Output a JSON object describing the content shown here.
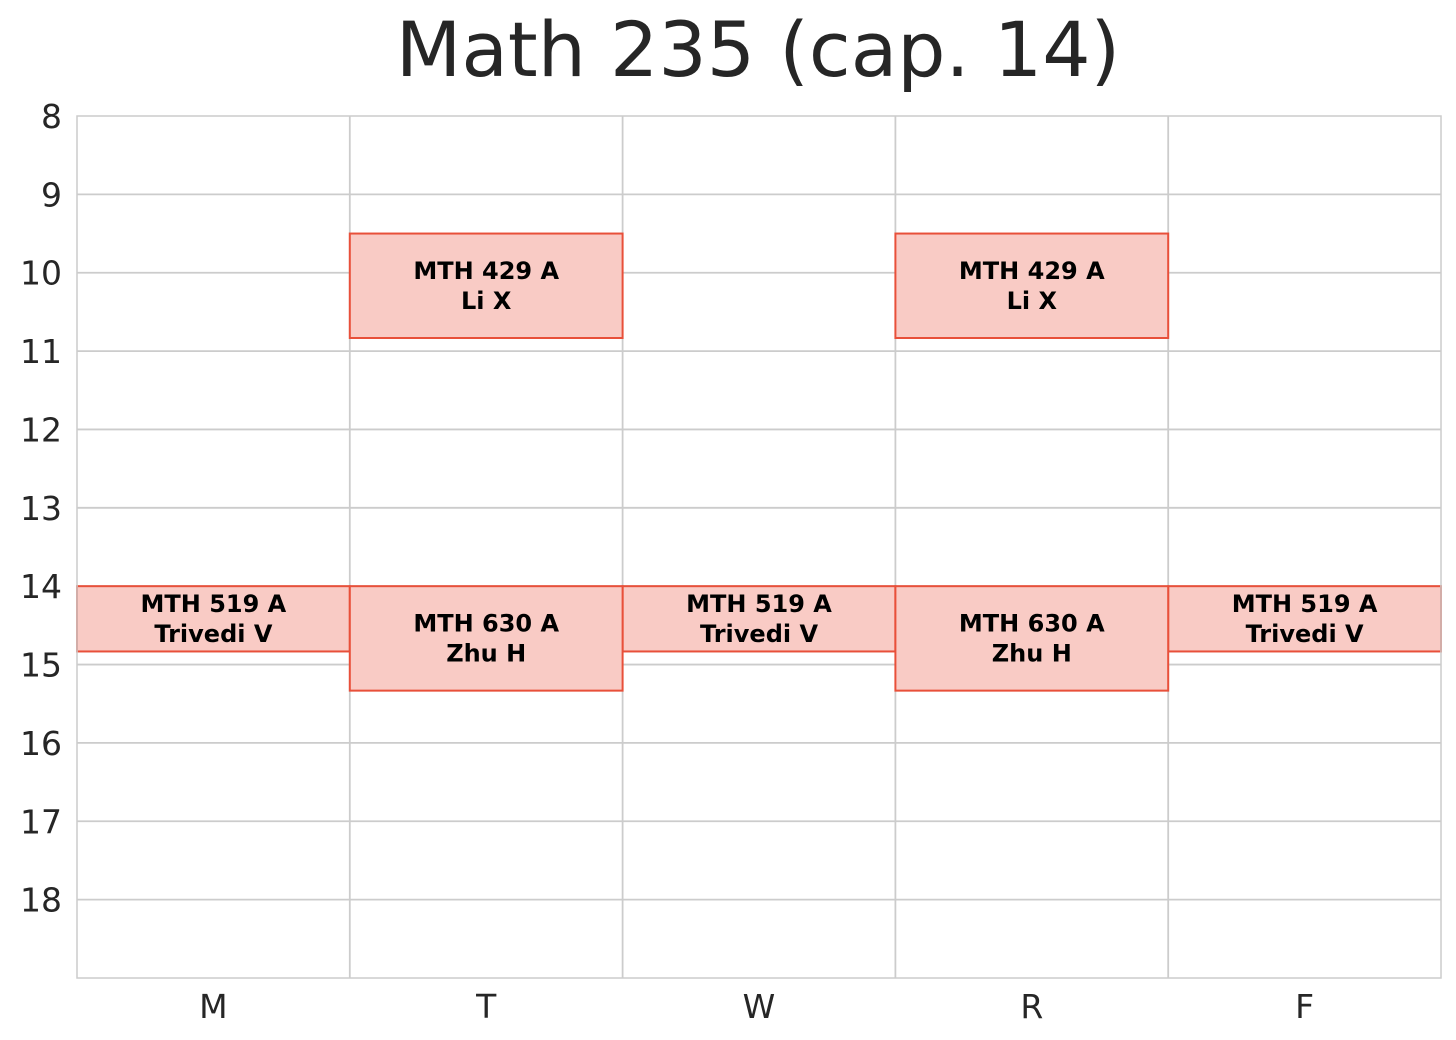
{
  "chart_data": {
    "type": "table",
    "title": "Math 235 (cap. 14)",
    "days": [
      "M",
      "T",
      "W",
      "R",
      "F"
    ],
    "hours": [
      8,
      9,
      10,
      11,
      12,
      13,
      14,
      15,
      16,
      17,
      18
    ],
    "ylim": [
      8,
      19
    ],
    "grid": true,
    "colors": {
      "fill": "#f9cbc5",
      "edge": "#e8503a",
      "grid": "#cccccc"
    },
    "events": [
      {
        "day": "T",
        "start": 9.5,
        "end": 10.833,
        "course": "MTH 429 A",
        "instructor": "Li X"
      },
      {
        "day": "R",
        "start": 9.5,
        "end": 10.833,
        "course": "MTH 429 A",
        "instructor": "Li X"
      },
      {
        "day": "M",
        "start": 14.0,
        "end": 14.833,
        "course": "MTH 519 A",
        "instructor": "Trivedi V"
      },
      {
        "day": "W",
        "start": 14.0,
        "end": 14.833,
        "course": "MTH 519 A",
        "instructor": "Trivedi V"
      },
      {
        "day": "F",
        "start": 14.0,
        "end": 14.833,
        "course": "MTH 519 A",
        "instructor": "Trivedi V"
      },
      {
        "day": "T",
        "start": 14.0,
        "end": 15.333,
        "course": "MTH 630 A",
        "instructor": "Zhu H"
      },
      {
        "day": "R",
        "start": 14.0,
        "end": 15.333,
        "course": "MTH 630 A",
        "instructor": "Zhu H"
      }
    ]
  }
}
